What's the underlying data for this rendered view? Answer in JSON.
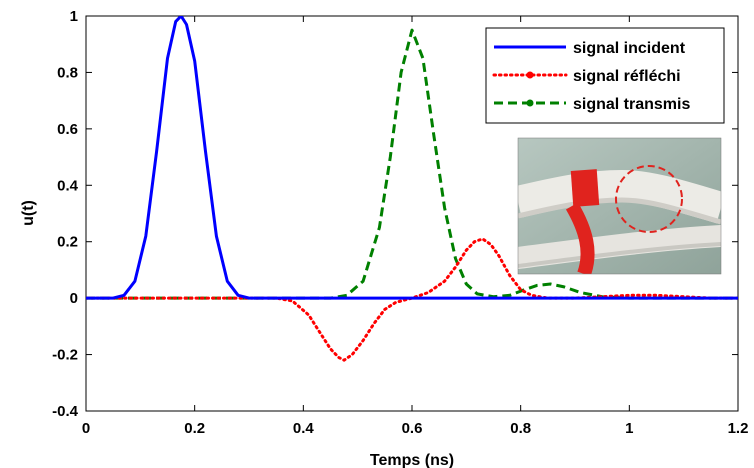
{
  "chart_data": {
    "type": "line",
    "title": "",
    "xlabel": "Temps (ns)",
    "ylabel": "u(t)",
    "xlim": [
      0,
      1.2
    ],
    "ylim": [
      -0.4,
      1
    ],
    "x_ticks": [
      0,
      0.2,
      0.4,
      0.6,
      0.8,
      1,
      1.2
    ],
    "x_tick_labels": [
      "0",
      "0.2",
      "0.4",
      "0.6",
      "0.8",
      "1",
      "1.2"
    ],
    "y_ticks": [
      -0.4,
      -0.2,
      0,
      0.2,
      0.4,
      0.6,
      0.8,
      1
    ],
    "y_tick_labels": [
      "-0.4",
      "-0.2",
      "0",
      "0.2",
      "0.4",
      "0.6",
      "0.8",
      "1"
    ],
    "grid": false,
    "legend_position": "top-right",
    "series": [
      {
        "name": "signal incident",
        "color": "#0000ff",
        "style": "solid",
        "marker": "none",
        "x": [
          0,
          0.05,
          0.07,
          0.09,
          0.11,
          0.13,
          0.15,
          0.165,
          0.175,
          0.185,
          0.2,
          0.22,
          0.24,
          0.26,
          0.28,
          0.3,
          0.35,
          0.4,
          0.5,
          0.6,
          0.7,
          0.8,
          0.9,
          1.0,
          1.1,
          1.2
        ],
        "y": [
          0,
          0,
          0.01,
          0.06,
          0.22,
          0.52,
          0.85,
          0.98,
          1.0,
          0.97,
          0.84,
          0.52,
          0.22,
          0.06,
          0.01,
          0,
          0,
          0,
          0,
          0,
          0,
          0,
          0,
          0,
          0,
          0
        ]
      },
      {
        "name": "signal réfléchi",
        "color": "#ff0000",
        "style": "dotted",
        "marker": "dot",
        "x": [
          0,
          0.35,
          0.38,
          0.41,
          0.43,
          0.45,
          0.465,
          0.475,
          0.49,
          0.51,
          0.53,
          0.55,
          0.57,
          0.6,
          0.63,
          0.66,
          0.68,
          0.7,
          0.715,
          0.73,
          0.745,
          0.76,
          0.78,
          0.8,
          0.82,
          0.85,
          0.9,
          0.95,
          1.0,
          1.05,
          1.1,
          1.15,
          1.2
        ],
        "y": [
          0,
          0,
          -0.01,
          -0.06,
          -0.12,
          -0.18,
          -0.21,
          -0.22,
          -0.2,
          -0.15,
          -0.09,
          -0.04,
          -0.015,
          0,
          0.02,
          0.06,
          0.11,
          0.17,
          0.2,
          0.21,
          0.19,
          0.15,
          0.08,
          0.03,
          0.01,
          0,
          0,
          0.005,
          0.01,
          0.01,
          0.005,
          0,
          0
        ]
      },
      {
        "name": "signal transmis",
        "color": "#008000",
        "style": "dashed",
        "marker": "dot",
        "x": [
          0,
          0.4,
          0.45,
          0.48,
          0.51,
          0.54,
          0.56,
          0.58,
          0.6,
          0.62,
          0.64,
          0.66,
          0.68,
          0.7,
          0.72,
          0.75,
          0.78,
          0.8,
          0.83,
          0.855,
          0.88,
          0.91,
          0.95,
          1.0,
          1.1,
          1.2
        ],
        "y": [
          0,
          0,
          0,
          0.01,
          0.06,
          0.25,
          0.5,
          0.8,
          0.95,
          0.85,
          0.58,
          0.32,
          0.14,
          0.05,
          0.015,
          0.005,
          0.01,
          0.025,
          0.045,
          0.05,
          0.04,
          0.02,
          0.005,
          0,
          0,
          0
        ]
      }
    ]
  },
  "inset": {
    "description_icon": "cable-fault-photo",
    "colors": {
      "background": "#a6b8b0",
      "cable": "#e9e7e2",
      "tape": "#e0231e",
      "circle": "#e0231e"
    }
  }
}
